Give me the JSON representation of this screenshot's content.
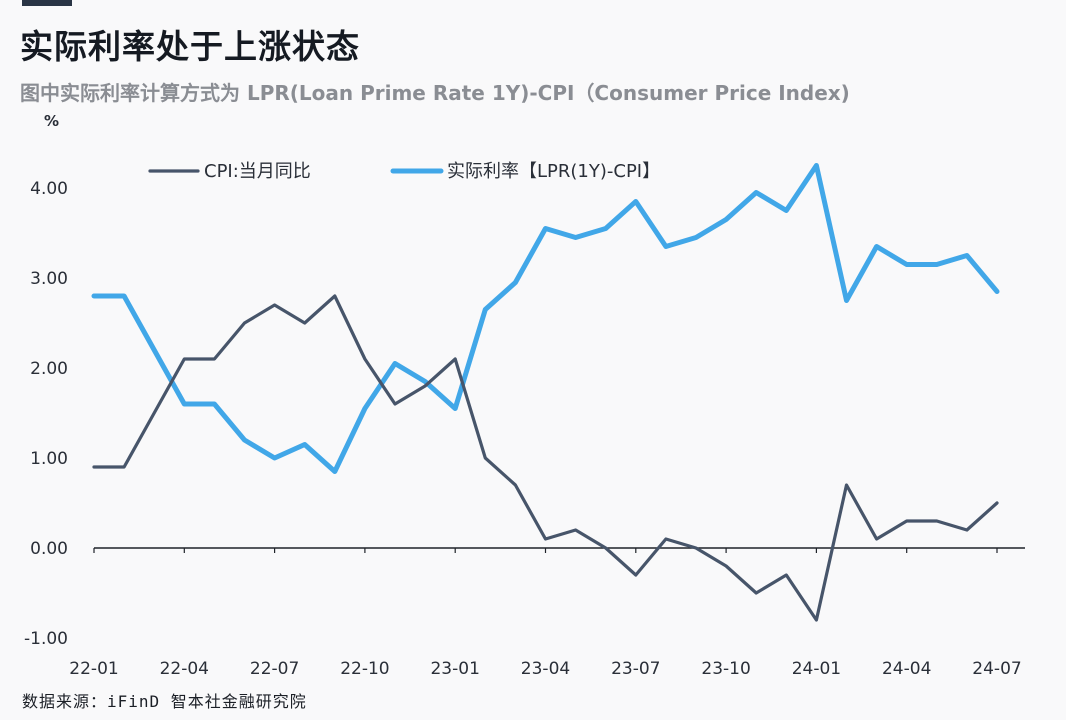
{
  "title": "实际利率处于上涨状态",
  "subtitle": "图中实际利率计算方式为 LPR(Loan Prime Rate 1Y)-CPI（Consumer Price Index)",
  "source": "数据来源：iFinD 智本社金融研究院",
  "chart_data": {
    "type": "line",
    "ylabel": "%",
    "ylim": [
      -1,
      4.5
    ],
    "yticks": [
      "4.00",
      "3.00",
      "2.00",
      "1.00",
      "0.00",
      "-1.00"
    ],
    "ytick_values": [
      4,
      3,
      2,
      1,
      0,
      -1
    ],
    "xtick_labels": [
      "22-01",
      "22-04",
      "22-07",
      "22-10",
      "23-01",
      "23-04",
      "23-07",
      "23-10",
      "24-01",
      "24-04",
      "24-07"
    ],
    "x": [
      "22-01",
      "22-02",
      "22-03",
      "22-04",
      "22-05",
      "22-06",
      "22-07",
      "22-08",
      "22-09",
      "22-10",
      "22-11",
      "22-12",
      "23-01",
      "23-02",
      "23-03",
      "23-04",
      "23-05",
      "23-06",
      "23-07",
      "23-08",
      "23-09",
      "23-10",
      "23-11",
      "23-12",
      "24-01",
      "24-02",
      "24-03",
      "24-04",
      "24-05",
      "24-06",
      "24-07"
    ],
    "legend_position": "top",
    "series": [
      {
        "name": "CPI:当月同比",
        "color": "#47556a",
        "values": [
          0.9,
          0.9,
          1.5,
          2.1,
          2.1,
          2.5,
          2.7,
          2.5,
          2.8,
          2.1,
          1.6,
          1.8,
          2.1,
          1.0,
          0.7,
          0.1,
          0.2,
          0.0,
          -0.3,
          0.1,
          0.0,
          -0.2,
          -0.5,
          -0.3,
          -0.8,
          0.7,
          0.1,
          0.3,
          0.3,
          0.2,
          0.5
        ]
      },
      {
        "name": "实际利率【LPR(1Y)-CPI】",
        "color": "#41a7e8",
        "values": [
          2.8,
          2.8,
          2.2,
          1.6,
          1.6,
          1.2,
          1.0,
          1.15,
          0.85,
          1.55,
          2.05,
          1.85,
          1.55,
          2.65,
          2.95,
          3.55,
          3.45,
          3.55,
          3.85,
          3.35,
          3.45,
          3.65,
          3.95,
          3.75,
          4.25,
          2.75,
          3.35,
          3.15,
          3.15,
          3.25,
          2.85
        ]
      }
    ]
  }
}
